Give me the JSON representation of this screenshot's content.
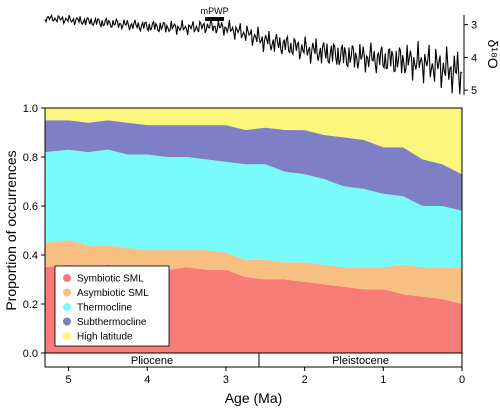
{
  "chart_data": {
    "type": "area",
    "stacked": true,
    "x_axis": {
      "label": "Age (Ma)",
      "range": [
        5.3,
        0
      ],
      "ticks": [
        "5",
        "4",
        "3",
        "2",
        "1",
        "0"
      ],
      "tick_values": [
        5,
        4,
        3,
        2,
        1,
        0
      ],
      "reversed": true
    },
    "y_axis": {
      "label": "Proportion of occurrences",
      "range": [
        0,
        1
      ],
      "ticks": [
        "0.0",
        "0.2",
        "0.4",
        "0.6",
        "0.8",
        "1.0"
      ],
      "tick_values": [
        0,
        0.2,
        0.4,
        0.6,
        0.8,
        1.0
      ]
    },
    "x": [
      5.3,
      5.0,
      4.75,
      4.5,
      4.25,
      4.0,
      3.75,
      3.5,
      3.25,
      3.0,
      2.75,
      2.5,
      2.25,
      2.0,
      1.75,
      1.5,
      1.25,
      1.0,
      0.75,
      0.5,
      0.25,
      0
    ],
    "series": [
      {
        "name": "Symbiotic SML",
        "color": "#f77b76",
        "values": [
          0.35,
          0.36,
          0.35,
          0.36,
          0.35,
          0.35,
          0.34,
          0.35,
          0.34,
          0.34,
          0.31,
          0.3,
          0.3,
          0.29,
          0.28,
          0.27,
          0.26,
          0.26,
          0.24,
          0.23,
          0.22,
          0.2
        ]
      },
      {
        "name": "Asymbiotic SML",
        "color": "#f7bf82",
        "values": [
          0.1,
          0.1,
          0.09,
          0.08,
          0.08,
          0.07,
          0.08,
          0.07,
          0.08,
          0.07,
          0.07,
          0.08,
          0.07,
          0.08,
          0.08,
          0.08,
          0.09,
          0.09,
          0.12,
          0.12,
          0.13,
          0.15
        ]
      },
      {
        "name": "Thermocline",
        "color": "#79fbfb",
        "values": [
          0.37,
          0.37,
          0.38,
          0.39,
          0.38,
          0.39,
          0.38,
          0.38,
          0.37,
          0.37,
          0.39,
          0.39,
          0.37,
          0.36,
          0.35,
          0.33,
          0.32,
          0.3,
          0.28,
          0.25,
          0.25,
          0.23
        ]
      },
      {
        "name": "Subthermocline",
        "color": "#7f7fc5",
        "values": [
          0.13,
          0.12,
          0.12,
          0.12,
          0.13,
          0.12,
          0.13,
          0.13,
          0.14,
          0.15,
          0.14,
          0.15,
          0.17,
          0.18,
          0.18,
          0.2,
          0.2,
          0.19,
          0.2,
          0.19,
          0.17,
          0.15
        ]
      },
      {
        "name": "High latitude",
        "color": "#fbf67e",
        "values": [
          0.05,
          0.05,
          0.06,
          0.05,
          0.06,
          0.07,
          0.07,
          0.07,
          0.07,
          0.07,
          0.09,
          0.08,
          0.09,
          0.09,
          0.11,
          0.12,
          0.13,
          0.16,
          0.16,
          0.21,
          0.23,
          0.27
        ]
      }
    ],
    "epochs": [
      {
        "name": "Pliocene",
        "from": 5.3,
        "to": 2.58
      },
      {
        "name": "Pleistocene",
        "from": 2.58,
        "to": 0
      }
    ],
    "d18o": {
      "label": "δ¹⁸O",
      "ticks": [
        "3",
        "4",
        "5"
      ],
      "tick_values": [
        3,
        4,
        5
      ],
      "range": [
        2.4,
        5.3
      ],
      "reversed": true,
      "annotation": "mPWP",
      "annotation_range": [
        3.264,
        3.025
      ],
      "trend_x": [
        5.3,
        5.0,
        4.5,
        4.0,
        3.5,
        3.2,
        3.0,
        2.7,
        2.5,
        2.0,
        1.5,
        1.0,
        0.5,
        0.2,
        0
      ],
      "trend_mean": [
        2.8,
        2.85,
        2.95,
        3.05,
        3.1,
        3.05,
        3.1,
        3.3,
        3.5,
        3.75,
        3.95,
        4.05,
        4.15,
        4.35,
        4.5
      ],
      "trend_amp": [
        0.1,
        0.12,
        0.15,
        0.17,
        0.18,
        0.2,
        0.22,
        0.25,
        0.3,
        0.35,
        0.4,
        0.45,
        0.5,
        0.6,
        0.7
      ]
    },
    "legend": {
      "position": "bottom-left"
    },
    "grid": false
  }
}
